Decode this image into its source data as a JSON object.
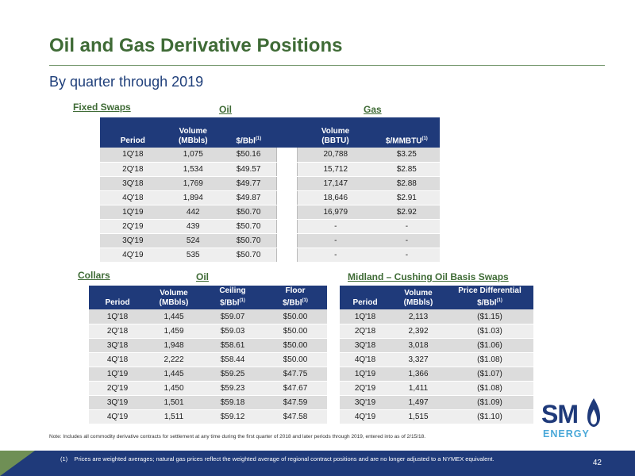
{
  "title": "Oil and Gas Derivative Positions",
  "subtitle": "By quarter through 2019",
  "fixed_swaps": {
    "label": "Fixed Swaps",
    "oil_label": "Oil",
    "gas_label": "Gas",
    "headers": {
      "period": "Period",
      "oil_volume": [
        "Volume",
        "(MBbls)"
      ],
      "oil_price": "$/Bbl",
      "oil_price_sup": "(1)",
      "gas_volume": [
        "Volume",
        "(BBTU)"
      ],
      "gas_price": "$/MMBTU",
      "gas_price_sup": "(1)"
    },
    "rows": [
      [
        "1Q'18",
        "1,075",
        "$50.16",
        "20,788",
        "$3.25"
      ],
      [
        "2Q'18",
        "1,534",
        "$49.57",
        "15,712",
        "$2.85"
      ],
      [
        "3Q'18",
        "1,769",
        "$49.77",
        "17,147",
        "$2.88"
      ],
      [
        "4Q'18",
        "1,894",
        "$49.87",
        "18,646",
        "$2.91"
      ],
      [
        "1Q'19",
        "442",
        "$50.70",
        "16,979",
        "$2.92"
      ],
      [
        "2Q'19",
        "439",
        "$50.70",
        "-",
        "-"
      ],
      [
        "3Q'19",
        "524",
        "$50.70",
        "-",
        "-"
      ],
      [
        "4Q'19",
        "535",
        "$50.70",
        "-",
        "-"
      ]
    ]
  },
  "collars": {
    "label": "Collars",
    "oil_label": "Oil",
    "headers": {
      "period": "Period",
      "volume": [
        "Volume",
        "(MBbls)"
      ],
      "ceiling": [
        "Ceiling",
        "$/Bbl"
      ],
      "ceiling_sup": "(1)",
      "floor": [
        "Floor",
        "$/Bbl"
      ],
      "floor_sup": "(1)"
    },
    "rows": [
      [
        "1Q'18",
        "1,445",
        "$59.07",
        "$50.00"
      ],
      [
        "2Q'18",
        "1,459",
        "$59.03",
        "$50.00"
      ],
      [
        "3Q'18",
        "1,948",
        "$58.61",
        "$50.00"
      ],
      [
        "4Q'18",
        "2,222",
        "$58.44",
        "$50.00"
      ],
      [
        "1Q'19",
        "1,445",
        "$59.25",
        "$47.75"
      ],
      [
        "2Q'19",
        "1,450",
        "$59.23",
        "$47.67"
      ],
      [
        "3Q'19",
        "1,501",
        "$59.18",
        "$47.59"
      ],
      [
        "4Q'19",
        "1,511",
        "$59.12",
        "$47.58"
      ]
    ]
  },
  "basis_swaps": {
    "label": "Midland – Cushing Oil Basis Swaps",
    "headers": {
      "period": "Period",
      "volume": [
        "Volume",
        "(MBbls)"
      ],
      "price_diff": [
        "Price Differential",
        "$/Bbl"
      ],
      "price_diff_sup": "(1)"
    },
    "rows": [
      [
        "1Q'18",
        "2,113",
        "($1.15)"
      ],
      [
        "2Q'18",
        "2,392",
        "($1.03)"
      ],
      [
        "3Q'18",
        "3,018",
        "($1.06)"
      ],
      [
        "4Q'18",
        "3,327",
        "($1.08)"
      ],
      [
        "1Q'19",
        "1,366",
        "($1.07)"
      ],
      [
        "2Q'19",
        "1,411",
        "($1.08)"
      ],
      [
        "3Q'19",
        "1,497",
        "($1.09)"
      ],
      [
        "4Q'19",
        "1,515",
        "($1.10)"
      ]
    ]
  },
  "note": "Note: Includes all commodity derivative contracts for settlement at any time during the first quarter of 2018 and later periods through 2019, entered into as of 2/15/18.",
  "footnote": {
    "marker": "(1)",
    "text": "Prices are weighted averages; natural gas prices reflect the weighted average of regional contract positions and are no longer adjusted to a NYMEX equivalent."
  },
  "page_number": "42",
  "logo": {
    "sm": "SM",
    "energy": "ENERGY",
    "colors": {
      "sm": "#1f3a7a",
      "energy": "#4aa8d8"
    }
  },
  "colors": {
    "title_green": "#3f6b36",
    "header_navy": "#1f3a7a",
    "subtitle_blue": "#1f3f7a"
  }
}
